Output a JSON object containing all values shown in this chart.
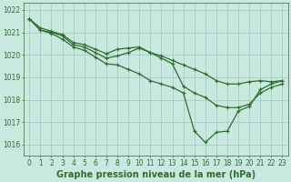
{
  "title": "Graphe pression niveau de la mer (hPa)",
  "hours": [
    0,
    1,
    2,
    3,
    4,
    5,
    6,
    7,
    8,
    9,
    10,
    11,
    12,
    13,
    14,
    15,
    16,
    17,
    18,
    19,
    20,
    21,
    22,
    23
  ],
  "line1": [
    1021.6,
    1021.2,
    1021.05,
    1020.9,
    1020.55,
    1020.45,
    1020.25,
    1020.05,
    1020.25,
    1020.3,
    1020.35,
    1020.1,
    1019.95,
    1019.75,
    1019.55,
    1019.35,
    1019.15,
    1018.85,
    1018.7,
    1018.7,
    1018.8,
    1018.85,
    1018.8,
    1018.85
  ],
  "line2": [
    1021.6,
    1021.1,
    1021.0,
    1020.85,
    1020.45,
    1020.35,
    1020.1,
    1019.85,
    1019.95,
    1020.1,
    1020.3,
    1020.1,
    1019.85,
    1019.6,
    1018.6,
    1018.3,
    1018.1,
    1017.75,
    1017.65,
    1017.65,
    1017.8,
    1018.3,
    1018.55,
    1018.7
  ],
  "line3": [
    1021.6,
    1021.1,
    1020.95,
    1020.7,
    1020.35,
    1020.2,
    1019.9,
    1019.6,
    1019.55,
    1019.35,
    1019.15,
    1018.85,
    1018.7,
    1018.55,
    1018.3,
    1016.6,
    1016.1,
    1016.55,
    1016.6,
    1017.5,
    1017.7,
    1018.45,
    1018.7,
    1018.85
  ],
  "line_color": "#2d6e2d",
  "bg_color": "#c8e8e0",
  "grid_color": "#a0c8c0",
  "ylim_min": 1015.5,
  "ylim_max": 1022.3,
  "yticks": [
    1016,
    1017,
    1018,
    1019,
    1020,
    1021,
    1022
  ],
  "marker": "+",
  "markersize": 3.5,
  "linewidth": 0.9,
  "title_fontsize": 7.0,
  "tick_fontsize": 5.5
}
